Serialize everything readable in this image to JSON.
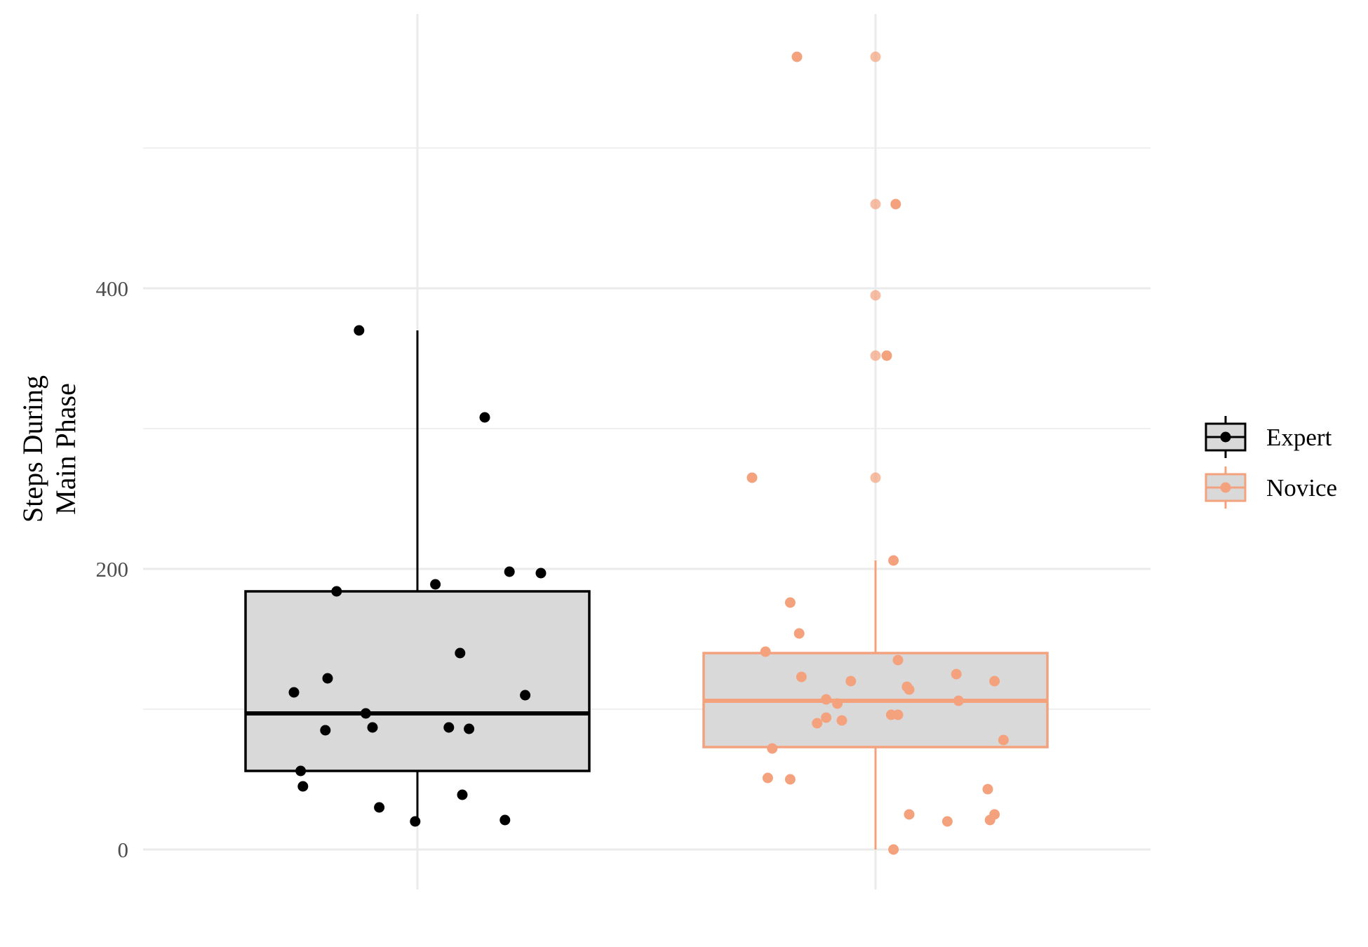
{
  "chart_data": {
    "type": "box",
    "ylabel_lines": [
      "Steps During",
      "Main Phase"
    ],
    "ylim": [
      -30,
      565
    ],
    "yticks": [
      0,
      200,
      400
    ],
    "grid": true,
    "legend_position": "right",
    "colors": {
      "Expert": "#000000",
      "Novice": "#f4a27e",
      "box_fill": "#d9d9d9",
      "grid": "#ebebeb"
    },
    "groups": [
      {
        "name": "Expert",
        "box": {
          "min": 20,
          "q1": 56,
          "median": 97,
          "q3": 184,
          "max": 370
        },
        "points": [
          [
            -0.55,
            112
          ],
          [
            -0.52,
            56
          ],
          [
            -0.51,
            45
          ],
          [
            -0.41,
            85
          ],
          [
            -0.4,
            122
          ],
          [
            -0.36,
            184
          ],
          [
            -0.26,
            370
          ],
          [
            -0.23,
            97
          ],
          [
            -0.2,
            87
          ],
          [
            -0.17,
            30
          ],
          [
            -0.01,
            20
          ],
          [
            0.08,
            189
          ],
          [
            0.14,
            87
          ],
          [
            0.19,
            140
          ],
          [
            0.2,
            39
          ],
          [
            0.23,
            86
          ],
          [
            0.3,
            308
          ],
          [
            0.39,
            21
          ],
          [
            0.41,
            198
          ],
          [
            0.48,
            110
          ],
          [
            0.55,
            197
          ]
        ]
      },
      {
        "name": "Novice",
        "box": {
          "min": 0,
          "q1": 73,
          "median": 106,
          "q3": 140,
          "max": 206
        },
        "points": [
          [
            -0.35,
            565
          ],
          [
            0.0,
            565
          ],
          [
            0.0,
            460
          ],
          [
            0.09,
            460
          ],
          [
            0.0,
            395
          ],
          [
            0.0,
            352
          ],
          [
            0.05,
            352
          ],
          [
            -0.55,
            265
          ],
          [
            0.0,
            265
          ],
          [
            0.08,
            206
          ],
          [
            -0.38,
            176
          ],
          [
            -0.34,
            154
          ],
          [
            -0.49,
            141
          ],
          [
            -0.33,
            123
          ],
          [
            -0.11,
            120
          ],
          [
            0.1,
            135
          ],
          [
            0.14,
            116
          ],
          [
            0.15,
            114
          ],
          [
            0.36,
            125
          ],
          [
            0.53,
            120
          ],
          [
            -0.22,
            107
          ],
          [
            -0.17,
            104
          ],
          [
            -0.22,
            94
          ],
          [
            -0.26,
            90
          ],
          [
            -0.15,
            92
          ],
          [
            0.07,
            96
          ],
          [
            0.1,
            96
          ],
          [
            0.37,
            106
          ],
          [
            -0.46,
            72
          ],
          [
            -0.48,
            51
          ],
          [
            -0.38,
            50
          ],
          [
            0.15,
            25
          ],
          [
            0.32,
            20
          ],
          [
            0.5,
            43
          ],
          [
            0.51,
            21
          ],
          [
            0.53,
            25
          ],
          [
            0.57,
            78
          ],
          [
            0.08,
            0
          ]
        ]
      }
    ]
  }
}
